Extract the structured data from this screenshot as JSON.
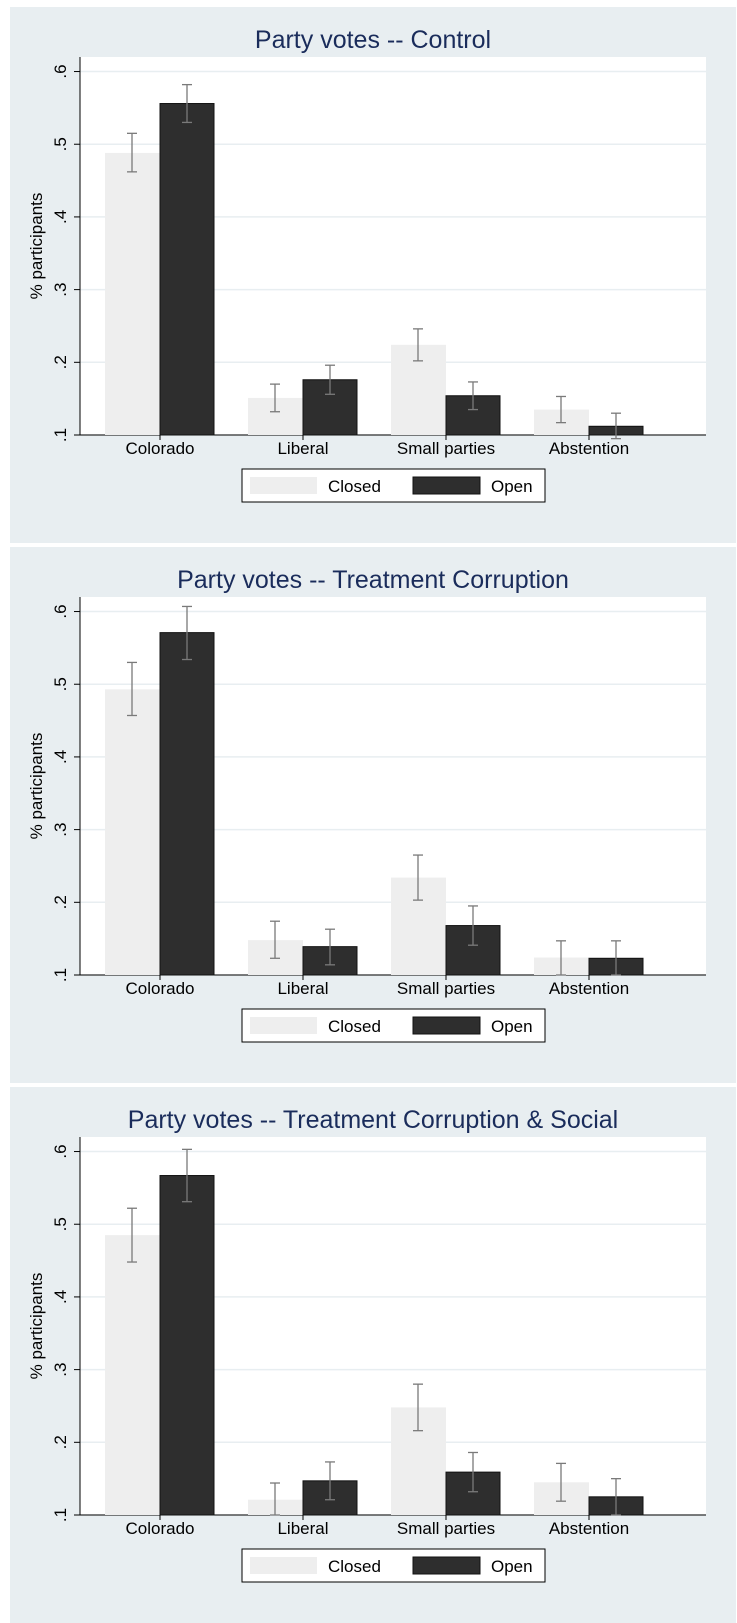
{
  "colors": {
    "panel_bg": "#e8eef1",
    "plot_bg": "#ffffff",
    "grid": "#e8eef1",
    "closed": "#eeeeee",
    "open": "#2e2e2e",
    "error_bar": "#7a7a7a",
    "title": "#1a2c5b"
  },
  "chart_data": [
    {
      "type": "bar",
      "title": "Party votes -- Control",
      "ylabel": "% participants",
      "xlabel": "",
      "ylim": [
        0.1,
        0.62
      ],
      "yticks": [
        ".1",
        ".2",
        ".3",
        ".4",
        ".5",
        ".6"
      ],
      "ytick_values": [
        0.1,
        0.2,
        0.3,
        0.4,
        0.5,
        0.6
      ],
      "grid": true,
      "legend": "bottom",
      "categories": [
        "Colorado",
        "Liberal",
        "Small parties",
        "Abstention"
      ],
      "series": [
        {
          "name": "Closed",
          "values": [
            0.488,
            0.151,
            0.224,
            0.135
          ],
          "ci_low": [
            0.462,
            0.132,
            0.202,
            0.117
          ],
          "ci_high": [
            0.515,
            0.17,
            0.246,
            0.153
          ]
        },
        {
          "name": "Open",
          "values": [
            0.556,
            0.176,
            0.154,
            0.112
          ],
          "ci_low": [
            0.53,
            0.156,
            0.135,
            0.095
          ],
          "ci_high": [
            0.582,
            0.196,
            0.173,
            0.13
          ]
        }
      ]
    },
    {
      "type": "bar",
      "title": "Party votes -- Treatment Corruption",
      "ylabel": "% participants",
      "xlabel": "",
      "ylim": [
        0.1,
        0.62
      ],
      "yticks": [
        ".1",
        ".2",
        ".3",
        ".4",
        ".5",
        ".6"
      ],
      "ytick_values": [
        0.1,
        0.2,
        0.3,
        0.4,
        0.5,
        0.6
      ],
      "grid": true,
      "legend": "bottom",
      "categories": [
        "Colorado",
        "Liberal",
        "Small parties",
        "Abstention"
      ],
      "series": [
        {
          "name": "Closed",
          "values": [
            0.493,
            0.148,
            0.234,
            0.124
          ],
          "ci_low": [
            0.457,
            0.123,
            0.203,
            0.1
          ],
          "ci_high": [
            0.53,
            0.174,
            0.265,
            0.147
          ]
        },
        {
          "name": "Open",
          "values": [
            0.571,
            0.139,
            0.168,
            0.123
          ],
          "ci_low": [
            0.534,
            0.114,
            0.141,
            0.1
          ],
          "ci_high": [
            0.607,
            0.163,
            0.195,
            0.147
          ]
        }
      ]
    },
    {
      "type": "bar",
      "title": "Party votes -- Treatment Corruption & Social",
      "ylabel": "% participants",
      "xlabel": "",
      "ylim": [
        0.1,
        0.62
      ],
      "yticks": [
        ".1",
        ".2",
        ".3",
        ".4",
        ".5",
        ".6"
      ],
      "ytick_values": [
        0.1,
        0.2,
        0.3,
        0.4,
        0.5,
        0.6
      ],
      "grid": true,
      "legend": "bottom",
      "categories": [
        "Colorado",
        "Liberal",
        "Small parties",
        "Abstention"
      ],
      "series": [
        {
          "name": "Closed",
          "values": [
            0.485,
            0.121,
            0.248,
            0.145
          ],
          "ci_low": [
            0.448,
            0.1,
            0.216,
            0.119
          ],
          "ci_high": [
            0.522,
            0.144,
            0.28,
            0.171
          ]
        },
        {
          "name": "Open",
          "values": [
            0.567,
            0.147,
            0.159,
            0.125
          ],
          "ci_low": [
            0.531,
            0.121,
            0.132,
            0.1
          ],
          "ci_high": [
            0.603,
            0.173,
            0.186,
            0.15
          ]
        }
      ]
    }
  ]
}
